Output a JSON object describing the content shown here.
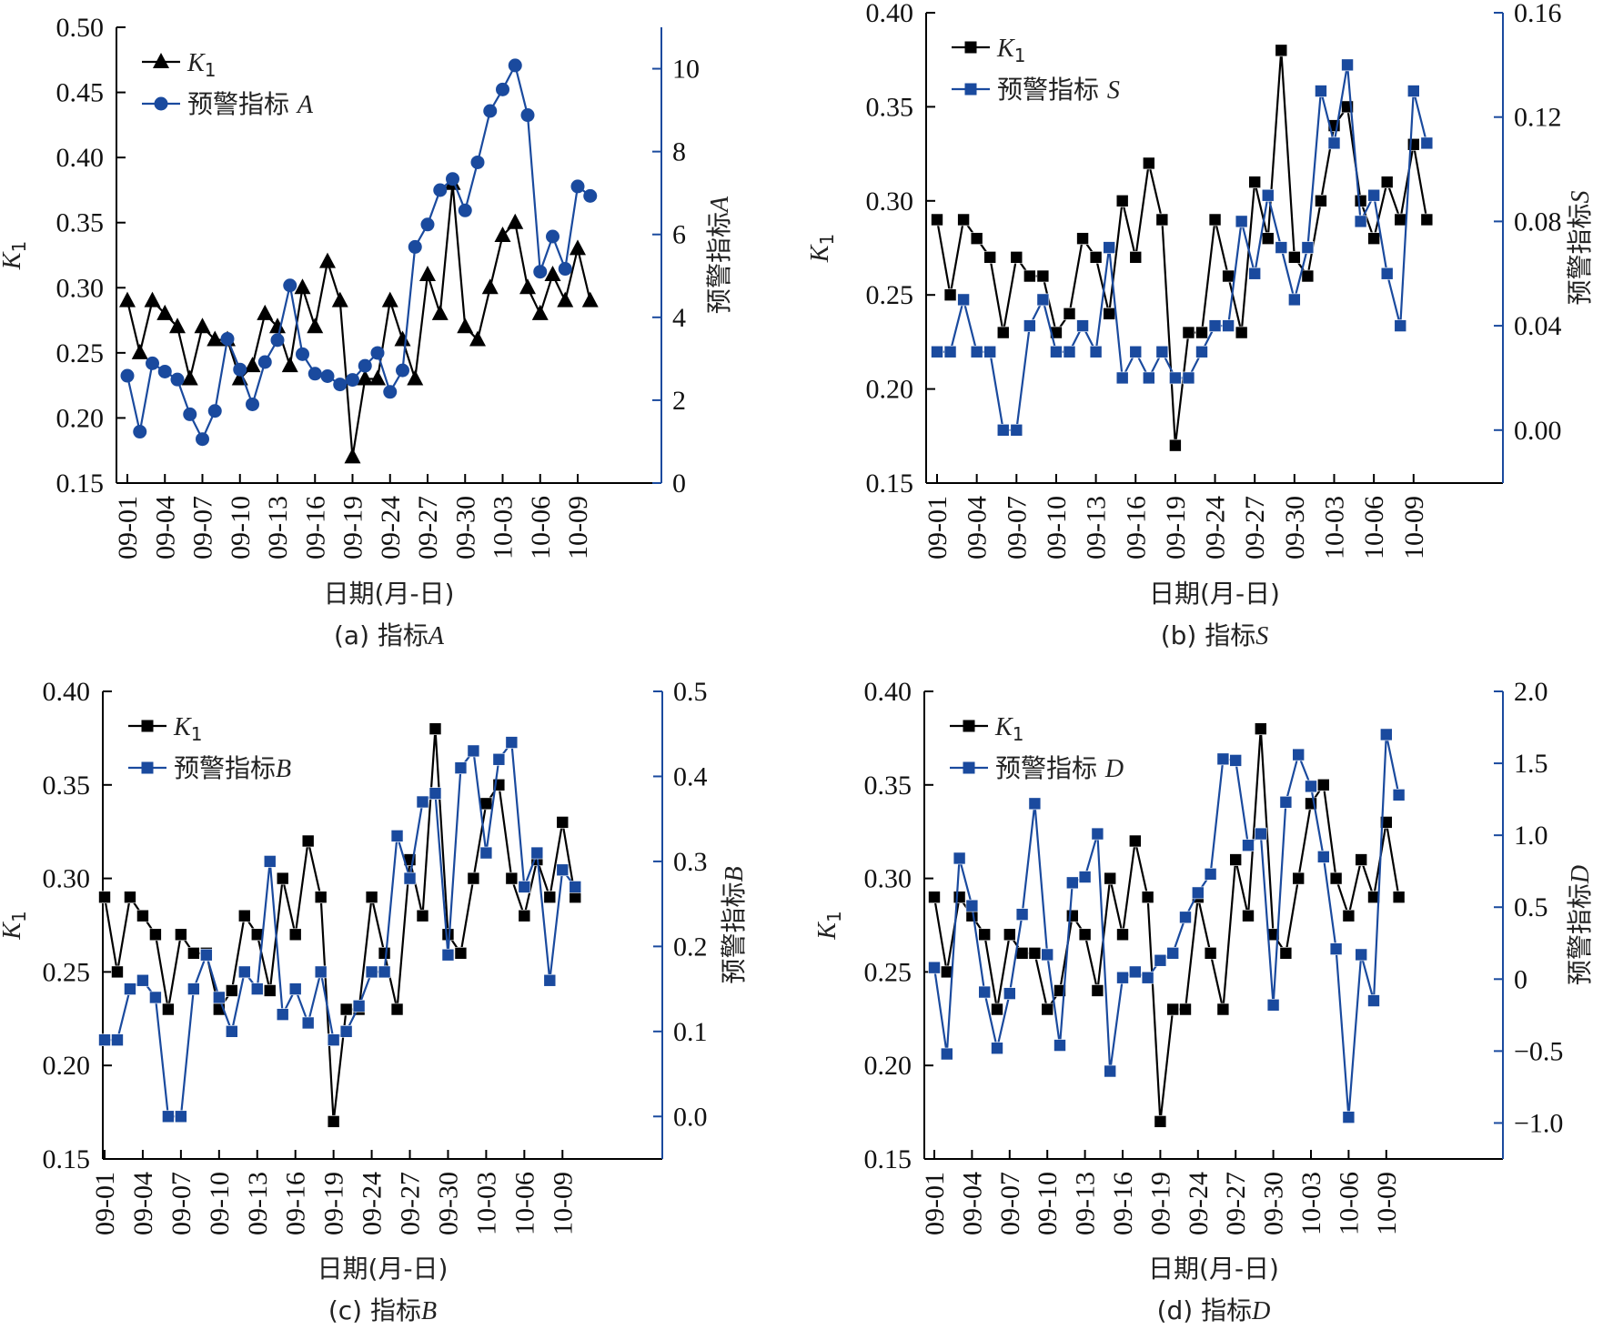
{
  "figure": {
    "colors": {
      "k1": "#000000",
      "indicator": "#1a4a9e",
      "right_axis": "#1a4a9e"
    }
  },
  "chart_data": [
    {
      "id": "a",
      "type": "line",
      "caption_prefix": "(a)  指标",
      "caption_var": "A",
      "title": "(a) 指标A",
      "xlabel": "日期(月-日)",
      "ylabel": "K",
      "ylabel_sub": "1",
      "y2label": "预警指标",
      "y2label_var": "A",
      "x_tick_labels": [
        "09-01",
        "09-04",
        "09-07",
        "09-10",
        "09-13",
        "09-16",
        "09-19",
        "09-24",
        "09-27",
        "09-30",
        "10-03",
        "10-06",
        "10-09"
      ],
      "x_tick_every": 3,
      "ylim": [
        0.15,
        0.5
      ],
      "yticks": [
        "0.15",
        "0.20",
        "0.25",
        "0.30",
        "0.35",
        "0.40",
        "0.45",
        "0.50"
      ],
      "ytick_values": [
        0.15,
        0.2,
        0.25,
        0.3,
        0.35,
        0.4,
        0.45,
        0.5
      ],
      "y2lim": [
        0,
        11
      ],
      "y2ticks": [
        "0",
        "2",
        "4",
        "6",
        "8",
        "10"
      ],
      "y2tick_values": [
        0,
        2,
        4,
        6,
        8,
        10
      ],
      "legend": {
        "position": "top-left",
        "entries": [
          {
            "label": "K",
            "sub": "1",
            "marker": "triangle"
          },
          {
            "label": "预警指标 ",
            "var": "A",
            "marker": "circle"
          }
        ]
      },
      "series": [
        {
          "name": "K1",
          "axis": "left",
          "marker": "triangle",
          "values": [
            0.29,
            0.25,
            0.29,
            0.28,
            0.27,
            0.23,
            0.27,
            0.26,
            0.26,
            0.23,
            0.24,
            0.28,
            0.27,
            0.24,
            0.3,
            0.27,
            0.32,
            0.29,
            0.17,
            0.23,
            0.23,
            0.29,
            0.26,
            0.23,
            0.31,
            0.28,
            0.38,
            0.27,
            0.26,
            0.3,
            0.34,
            0.35,
            0.3,
            0.28,
            0.31,
            0.29,
            0.33,
            0.29
          ]
        },
        {
          "name": "预警指标A",
          "axis": "right",
          "marker": "circle",
          "values": [
            2.59,
            1.24,
            2.89,
            2.69,
            2.5,
            1.66,
            1.06,
            1.74,
            3.48,
            2.74,
            1.9,
            2.92,
            3.45,
            4.77,
            3.11,
            2.64,
            2.58,
            2.38,
            2.49,
            2.83,
            3.14,
            2.2,
            2.72,
            5.7,
            6.24,
            7.07,
            7.34,
            6.58,
            7.74,
            8.98,
            9.5,
            10.08,
            8.88,
            5.1,
            5.95,
            5.17,
            7.16,
            6.93
          ]
        }
      ]
    },
    {
      "id": "b",
      "type": "line",
      "caption_prefix": "(b)  指标",
      "caption_var": "S",
      "title": "(b) 指标S",
      "xlabel": "日期(月-日)",
      "ylabel": "K",
      "ylabel_sub": "1",
      "y2label": "预警指标",
      "y2label_var": "S",
      "x_tick_labels": [
        "09-01",
        "09-04",
        "09-07",
        "09-10",
        "09-13",
        "09-16",
        "09-19",
        "09-24",
        "09-27",
        "09-30",
        "10-03",
        "10-06",
        "10-09"
      ],
      "x_tick_every": 3,
      "ylim": [
        0.15,
        0.4
      ],
      "yticks": [
        "0.15",
        "0.20",
        "0.25",
        "0.30",
        "0.35",
        "0.40"
      ],
      "ytick_values": [
        0.15,
        0.2,
        0.25,
        0.3,
        0.35,
        0.4
      ],
      "y2lim": [
        -0.0203,
        0.16
      ],
      "y2ticks": [
        "0.00",
        "0.04",
        "0.08",
        "0.12",
        "0.16"
      ],
      "y2tick_values": [
        0,
        0.04,
        0.08,
        0.12,
        0.16
      ],
      "legend": {
        "position": "top-left",
        "entries": [
          {
            "label": "K",
            "sub": "1",
            "marker": "square"
          },
          {
            "label": "预警指标 ",
            "var": "S",
            "marker": "square"
          }
        ]
      },
      "series": [
        {
          "name": "K1",
          "axis": "left",
          "marker": "square",
          "values": [
            0.29,
            0.25,
            0.29,
            0.28,
            0.27,
            0.23,
            0.27,
            0.26,
            0.26,
            0.23,
            0.24,
            0.28,
            0.27,
            0.24,
            0.3,
            0.27,
            0.32,
            0.29,
            0.17,
            0.23,
            0.23,
            0.29,
            0.26,
            0.23,
            0.31,
            0.28,
            0.38,
            0.27,
            0.26,
            0.3,
            0.34,
            0.35,
            0.3,
            0.28,
            0.31,
            0.29,
            0.33,
            0.29
          ]
        },
        {
          "name": "预警指标S",
          "axis": "right",
          "marker": "square",
          "values": [
            0.03,
            0.03,
            0.05,
            0.03,
            0.03,
            0.0,
            0.0,
            0.04,
            0.05,
            0.03,
            0.03,
            0.04,
            0.03,
            0.07,
            0.02,
            0.03,
            0.02,
            0.03,
            0.02,
            0.02,
            0.03,
            0.04,
            0.04,
            0.08,
            0.06,
            0.09,
            0.07,
            0.05,
            0.07,
            0.13,
            0.11,
            0.14,
            0.08,
            0.09,
            0.06,
            0.04,
            0.13,
            0.11
          ]
        }
      ]
    },
    {
      "id": "c",
      "type": "line",
      "caption_prefix": "(c)  指标",
      "caption_var": "B",
      "title": "(c) 指标B",
      "xlabel": "日期(月-日)",
      "ylabel": "K",
      "ylabel_sub": "1",
      "y2label": "预警指标",
      "y2label_var": "B",
      "x_tick_labels": [
        "09-01",
        "09-04",
        "09-07",
        "09-10",
        "09-13",
        "09-16",
        "09-19",
        "09-24",
        "09-27",
        "09-30",
        "10-03",
        "10-06",
        "10-09"
      ],
      "x_tick_every": 3,
      "ylim": [
        0.15,
        0.4
      ],
      "yticks": [
        "0.15",
        "0.20",
        "0.25",
        "0.30",
        "0.35",
        "0.40"
      ],
      "ytick_values": [
        0.15,
        0.2,
        0.25,
        0.3,
        0.35,
        0.4
      ],
      "y2lim": [
        -0.05,
        0.5
      ],
      "y2ticks": [
        "0.0",
        "0.1",
        "0.2",
        "0.3",
        "0.4",
        "0.5"
      ],
      "y2tick_values": [
        0,
        0.1,
        0.2,
        0.3,
        0.4,
        0.5
      ],
      "legend": {
        "position": "top-left",
        "entries": [
          {
            "label": "K",
            "sub": "1",
            "marker": "square"
          },
          {
            "label": "预警指标",
            "var": "B",
            "marker": "square"
          }
        ]
      },
      "series": [
        {
          "name": "K1",
          "axis": "left",
          "marker": "square",
          "values": [
            0.29,
            0.25,
            0.29,
            0.28,
            0.27,
            0.23,
            0.27,
            0.26,
            0.26,
            0.23,
            0.24,
            0.28,
            0.27,
            0.24,
            0.3,
            0.27,
            0.32,
            0.29,
            0.17,
            0.23,
            0.23,
            0.29,
            0.26,
            0.23,
            0.31,
            0.28,
            0.38,
            0.27,
            0.26,
            0.3,
            0.34,
            0.35,
            0.3,
            0.28,
            0.31,
            0.29,
            0.33,
            0.29
          ]
        },
        {
          "name": "预警指标B",
          "axis": "right",
          "marker": "square",
          "values": [
            0.09,
            0.09,
            0.15,
            0.16,
            0.14,
            0.0,
            0.0,
            0.15,
            0.19,
            0.14,
            0.1,
            0.17,
            0.15,
            0.3,
            0.12,
            0.15,
            0.11,
            0.17,
            0.09,
            0.1,
            0.13,
            0.17,
            0.17,
            0.33,
            0.28,
            0.37,
            0.38,
            0.19,
            0.41,
            0.43,
            0.31,
            0.42,
            0.44,
            0.27,
            0.31,
            0.16,
            0.29,
            0.27
          ]
        }
      ]
    },
    {
      "id": "d",
      "type": "line",
      "caption_prefix": "(d)  指标",
      "caption_var": "D",
      "title": "(d) 指标D",
      "xlabel": "日期(月-日)",
      "ylabel": "K",
      "ylabel_sub": "1",
      "y2label": "预警指标",
      "y2label_var": "D",
      "x_tick_labels": [
        "09-01",
        "09-04",
        "09-07",
        "09-10",
        "09-13",
        "09-16",
        "09-19",
        "09-24",
        "09-27",
        "09-30",
        "10-03",
        "10-06",
        "10-09"
      ],
      "x_tick_every": 3,
      "ylim": [
        0.15,
        0.4
      ],
      "yticks": [
        "0.15",
        "0.20",
        "0.25",
        "0.30",
        "0.35",
        "0.40"
      ],
      "ytick_values": [
        0.15,
        0.2,
        0.25,
        0.3,
        0.35,
        0.4
      ],
      "y2lim": [
        -1.25,
        2.0
      ],
      "y2ticks": [
        "−1.0",
        "−0.5",
        "0",
        "0.5",
        "1.0",
        "1.5",
        "2.0"
      ],
      "y2tick_values": [
        -1.0,
        -0.5,
        0,
        0.5,
        1.0,
        1.5,
        2.0
      ],
      "legend": {
        "position": "top-left",
        "entries": [
          {
            "label": "K",
            "sub": "1",
            "marker": "square"
          },
          {
            "label": "预警指标 ",
            "var": "D",
            "marker": "square"
          }
        ]
      },
      "series": [
        {
          "name": "K1",
          "axis": "left",
          "marker": "square",
          "values": [
            0.29,
            0.25,
            0.29,
            0.28,
            0.27,
            0.23,
            0.27,
            0.26,
            0.26,
            0.23,
            0.24,
            0.28,
            0.27,
            0.24,
            0.3,
            0.27,
            0.32,
            0.29,
            0.17,
            0.23,
            0.23,
            0.29,
            0.26,
            0.23,
            0.31,
            0.28,
            0.38,
            0.27,
            0.26,
            0.3,
            0.34,
            0.35,
            0.3,
            0.28,
            0.31,
            0.29,
            0.33,
            0.29
          ]
        },
        {
          "name": "预警指标D",
          "axis": "right",
          "marker": "square",
          "values": [
            0.08,
            -0.52,
            0.84,
            0.51,
            -0.09,
            -0.48,
            -0.1,
            0.45,
            1.22,
            0.17,
            -0.46,
            0.67,
            0.71,
            1.01,
            -0.64,
            0.01,
            0.05,
            0.01,
            0.13,
            0.18,
            0.43,
            0.6,
            0.73,
            1.53,
            1.52,
            0.93,
            1.01,
            -0.18,
            1.23,
            1.56,
            1.34,
            0.85,
            0.21,
            -0.96,
            0.17,
            -0.15,
            1.7,
            1.28
          ]
        }
      ]
    }
  ]
}
